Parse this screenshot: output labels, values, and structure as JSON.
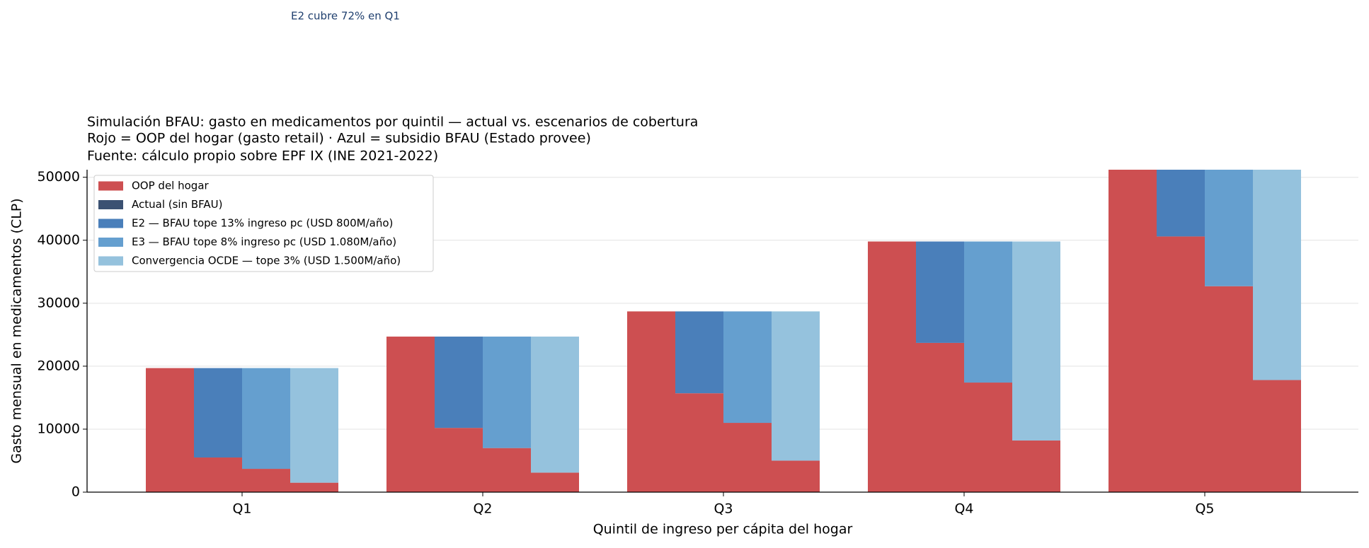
{
  "chart_data": {
    "type": "grouped_stacked_bar",
    "annotation": "E2 cubre 72% en Q1",
    "title_lines": [
      "Simulación BFAU: gasto en medicamentos por quintil — actual vs. escenarios de cobertura",
      "Rojo = OOP del hogar (gasto retail) · Azul = subsidio BFAU (Estado provee)",
      "Fuente: cálculo propio sobre EPF IX (INE 2021-2022)"
    ],
    "x_label": "Quintil de ingreso per cápita del hogar",
    "y_label": "Gasto mensual en medicamentos (CLP)",
    "categories": [
      "Q1",
      "Q2",
      "Q3",
      "Q4",
      "Q5"
    ],
    "oop_name": "OOP del hogar",
    "oop_color": "#cd4f51",
    "scenarios": [
      {
        "name": "Actual (sin BFAU)",
        "color": "#3b5172",
        "oop": [
          19700,
          24700,
          28700,
          39800,
          51200
        ],
        "subsidy": [
          0,
          0,
          0,
          0,
          0
        ]
      },
      {
        "name": "E2 — BFAU tope 13% ingreso pc (USD 800M/año)",
        "color": "#4a7fba",
        "oop": [
          5500,
          10200,
          15700,
          23700,
          40600
        ],
        "subsidy": [
          14200,
          14500,
          13000,
          16100,
          10600
        ]
      },
      {
        "name": "E3 — BFAU tope 8% ingreso pc (USD 1.080M/año)",
        "color": "#659fcf",
        "oop": [
          3700,
          7000,
          11000,
          17400,
          32700
        ],
        "subsidy": [
          16000,
          17700,
          17700,
          22400,
          18500
        ]
      },
      {
        "name": "Convergencia OCDE — tope 3% (USD 1.500M/año)",
        "color": "#95c2dd",
        "oop": [
          1500,
          3100,
          5000,
          8200,
          17800
        ],
        "subsidy": [
          18200,
          21600,
          23700,
          31600,
          33400
        ]
      }
    ],
    "ylim": [
      0,
      51200
    ],
    "yticks": [
      0,
      10000,
      20000,
      30000,
      40000,
      50000
    ],
    "grid": true,
    "legend": "upper left"
  }
}
